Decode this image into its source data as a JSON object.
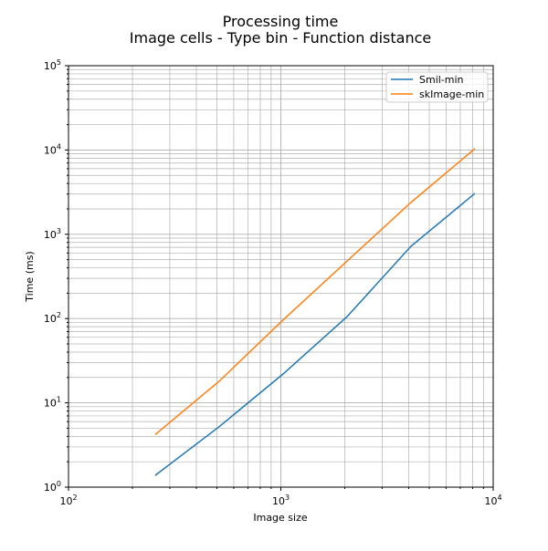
{
  "chart_data": {
    "type": "line",
    "title": "Processing time",
    "subtitle": "Image cells - Type bin - Function distance",
    "xlabel": "Image size",
    "ylabel": "Time (ms)",
    "xscale": "log",
    "yscale": "log",
    "xlim": [
      100,
      10000
    ],
    "ylim": [
      1,
      100000
    ],
    "xticks": [
      {
        "base": "10",
        "exp": "2",
        "value": 100
      },
      {
        "base": "10",
        "exp": "3",
        "value": 1000
      },
      {
        "base": "10",
        "exp": "4",
        "value": 10000
      }
    ],
    "yticks": [
      {
        "base": "10",
        "exp": "0",
        "value": 1
      },
      {
        "base": "10",
        "exp": "1",
        "value": 10
      },
      {
        "base": "10",
        "exp": "2",
        "value": 100
      },
      {
        "base": "10",
        "exp": "3",
        "value": 1000
      },
      {
        "base": "10",
        "exp": "4",
        "value": 10000
      },
      {
        "base": "10",
        "exp": "5",
        "value": 100000
      }
    ],
    "grid": true,
    "legend_position": "top-right",
    "x": [
      256,
      512,
      1024,
      2048,
      4096,
      8192
    ],
    "series": [
      {
        "name": "Smil-min",
        "color": "#1f77b4",
        "values": [
          1.38,
          5.2,
          22,
          105,
          720,
          3050
        ]
      },
      {
        "name": "skImage-min",
        "color": "#ff7f0e",
        "values": [
          4.2,
          18,
          96,
          480,
          2380,
          10350
        ]
      }
    ]
  }
}
